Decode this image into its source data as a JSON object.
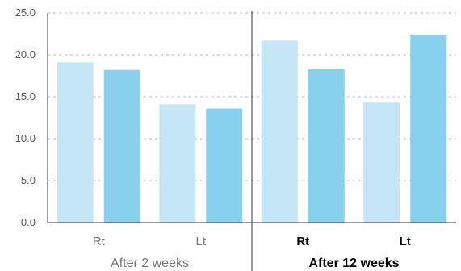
{
  "chart_data": {
    "type": "bar",
    "ylim": [
      0,
      25
    ],
    "yticks": [
      "0.0",
      "5.0",
      "10.0",
      "15.0",
      "20.0",
      "25.0"
    ],
    "grid": true,
    "groups": [
      {
        "label": "After 2 weeks",
        "bold": false,
        "categories": [
          {
            "label": "Rt",
            "values": [
              19.1,
              18.2
            ]
          },
          {
            "label": "Lt",
            "values": [
              14.1,
              13.6
            ]
          }
        ]
      },
      {
        "label": "After 12 weeks",
        "bold": true,
        "categories": [
          {
            "label": "Rt",
            "values": [
              21.7,
              18.3
            ]
          },
          {
            "label": "Lt",
            "values": [
              14.3,
              22.4
            ]
          }
        ]
      }
    ],
    "series_colors": [
      "#c5e6f7",
      "#87d1ee"
    ]
  }
}
